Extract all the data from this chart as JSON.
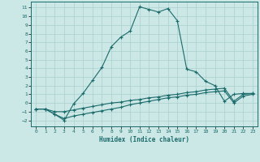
{
  "xlabel": "Humidex (Indice chaleur)",
  "xlim": [
    -0.5,
    23.5
  ],
  "ylim": [
    -2.7,
    11.7
  ],
  "xticks": [
    0,
    1,
    2,
    3,
    4,
    5,
    6,
    7,
    8,
    9,
    10,
    11,
    12,
    13,
    14,
    15,
    16,
    17,
    18,
    19,
    20,
    21,
    22,
    23
  ],
  "yticks": [
    -2,
    -1,
    0,
    1,
    2,
    3,
    4,
    5,
    6,
    7,
    8,
    9,
    10,
    11
  ],
  "bg_color": "#cce8e6",
  "line_color": "#1a6b6b",
  "grid_color": "#aacfcd",
  "line1_x": [
    0,
    1,
    2,
    3,
    4,
    5,
    6,
    7,
    8,
    9,
    10,
    11,
    12,
    13,
    14,
    15,
    16,
    17,
    18,
    19,
    20,
    21,
    22,
    23
  ],
  "line1_y": [
    -0.7,
    -0.7,
    -1.3,
    -2.0,
    -0.1,
    1.1,
    2.6,
    4.1,
    6.5,
    7.6,
    8.3,
    11.1,
    10.8,
    10.5,
    10.9,
    9.5,
    3.9,
    3.6,
    2.5,
    2.0,
    0.2,
    1.0,
    1.1,
    1.1
  ],
  "line2_x": [
    0,
    1,
    2,
    3,
    4,
    5,
    6,
    7,
    8,
    9,
    10,
    11,
    12,
    13,
    14,
    15,
    16,
    17,
    18,
    19,
    20,
    21,
    22,
    23
  ],
  "line2_y": [
    -0.7,
    -0.7,
    -1.0,
    -1.0,
    -0.8,
    -0.6,
    -0.4,
    -0.2,
    0.0,
    0.1,
    0.3,
    0.4,
    0.6,
    0.7,
    0.9,
    1.0,
    1.2,
    1.3,
    1.5,
    1.6,
    1.7,
    0.2,
    1.0,
    1.1
  ],
  "line3_x": [
    0,
    1,
    2,
    3,
    4,
    5,
    6,
    7,
    8,
    9,
    10,
    11,
    12,
    13,
    14,
    15,
    16,
    17,
    18,
    19,
    20,
    21,
    22,
    23
  ],
  "line3_y": [
    -0.7,
    -0.7,
    -1.3,
    -1.8,
    -1.5,
    -1.3,
    -1.1,
    -0.9,
    -0.7,
    -0.5,
    -0.2,
    0.0,
    0.2,
    0.4,
    0.6,
    0.7,
    0.9,
    1.0,
    1.2,
    1.3,
    1.4,
    0.0,
    0.8,
    1.0
  ]
}
